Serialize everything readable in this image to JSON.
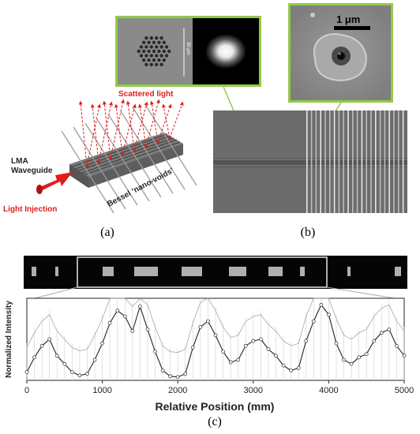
{
  "figure": {
    "panel_a": {
      "label": "(a)",
      "scattered_light": "Scattered light",
      "waveguide": "LMA\nWaveguide",
      "light_injection": "Light Injection",
      "nano_voids": "Bessel ‘nano-voids’"
    },
    "panel_b": {
      "label": "(b)",
      "scale_fiber": "30 μm",
      "scale_bar": "1 μm"
    },
    "panel_c": {
      "label": "(c)"
    },
    "colors": {
      "inset_frame": "#93c94a",
      "pointer_line": "#93c94a",
      "scatter_arrow": "#e01e1e",
      "injection_arrow": "#e01e1e",
      "injection_text": "#e01e1e",
      "plot_line": "#222222"
    }
  },
  "chart_data": {
    "type": "line",
    "title": "",
    "xlabel": "Relative Position (mm)",
    "ylabel": "Normalized Intensity",
    "xlim": [
      0,
      5000
    ],
    "ylim": [
      0,
      1
    ],
    "xticks": [
      "0",
      "1000",
      "2000",
      "3000",
      "4000",
      "5000"
    ],
    "grid": false,
    "series": [
      {
        "x": [
          0,
          100,
          200,
          300,
          400,
          500,
          600,
          700,
          800,
          900,
          1000,
          1100,
          1200,
          1300,
          1400,
          1500,
          1600,
          1700,
          1800,
          1900,
          2000,
          2100,
          2200,
          2300,
          2400,
          2500,
          2600,
          2700,
          2800,
          2900,
          3000,
          3100,
          3200,
          3300,
          3400,
          3500,
          3600,
          3700,
          3800,
          3900,
          4000,
          4100,
          4200,
          4300,
          4400,
          4500,
          4600,
          4700,
          4800,
          4900,
          5000
        ],
        "y": [
          0.1,
          0.28,
          0.42,
          0.5,
          0.3,
          0.2,
          0.1,
          0.06,
          0.08,
          0.25,
          0.45,
          0.7,
          0.85,
          0.78,
          0.6,
          0.9,
          0.62,
          0.35,
          0.12,
          0.05,
          0.04,
          0.08,
          0.4,
          0.65,
          0.72,
          0.55,
          0.35,
          0.22,
          0.25,
          0.42,
          0.48,
          0.5,
          0.38,
          0.3,
          0.18,
          0.12,
          0.15,
          0.48,
          0.72,
          0.92,
          0.8,
          0.45,
          0.25,
          0.2,
          0.28,
          0.32,
          0.48,
          0.58,
          0.62,
          0.42,
          0.3
        ]
      }
    ]
  }
}
